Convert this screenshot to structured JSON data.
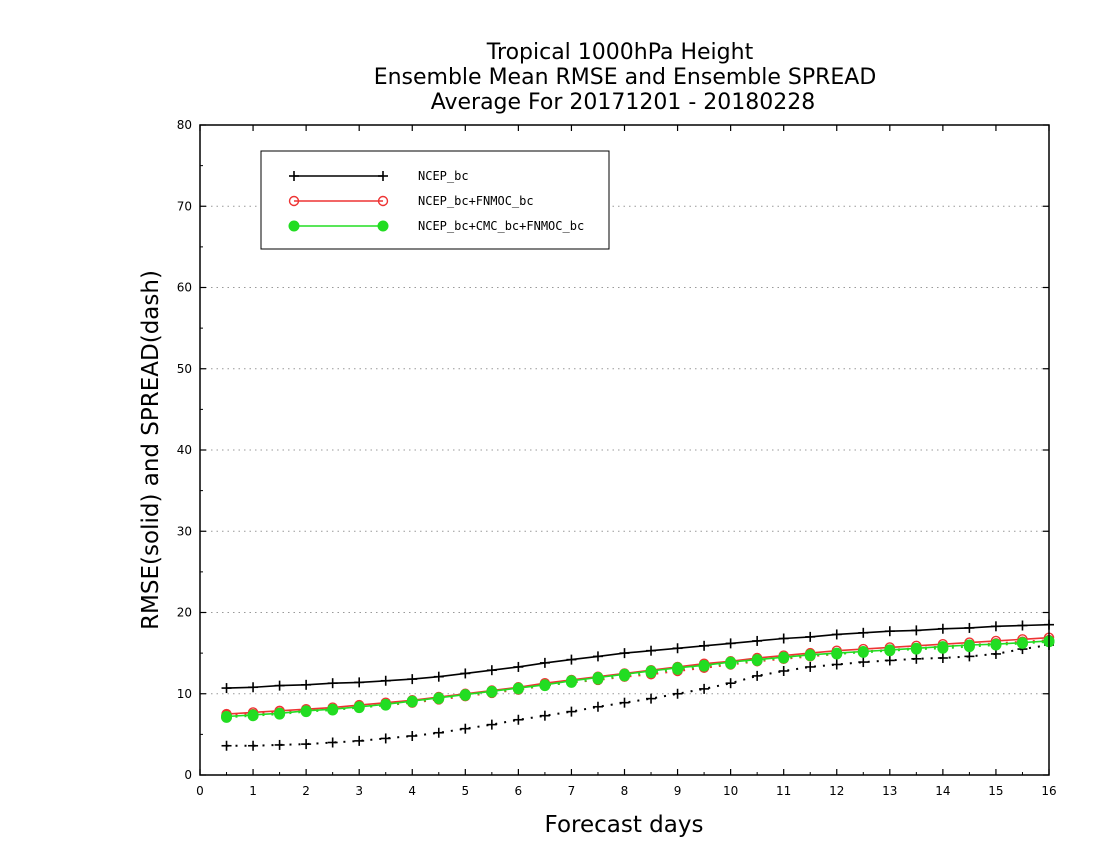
{
  "chart_data": {
    "type": "line",
    "title": [
      "Tropical 1000hPa Height",
      "Ensemble Mean RMSE and Ensemble SPREAD",
      "Average For 20171201 - 20180228"
    ],
    "xlabel": "Forecast days",
    "ylabel": "RMSE(solid) and SPREAD(dash)",
    "xlim": [
      0,
      16
    ],
    "ylim": [
      0,
      80
    ],
    "xticks": [
      0,
      1,
      2,
      3,
      4,
      5,
      6,
      7,
      8,
      9,
      10,
      11,
      12,
      13,
      14,
      15,
      16
    ],
    "yticks": [
      0,
      10,
      20,
      30,
      40,
      50,
      60,
      70,
      80
    ],
    "grid": "horizontal dotted",
    "legend_position": "top-left",
    "x": [
      0.5,
      1,
      1.5,
      2,
      2.5,
      3,
      3.5,
      4,
      4.5,
      5,
      5.5,
      6,
      6.5,
      7,
      7.5,
      8,
      8.5,
      9,
      9.5,
      10,
      10.5,
      11,
      11.5,
      12,
      12.5,
      13,
      13.5,
      14,
      14.5,
      15,
      15.5,
      16
    ],
    "series": [
      {
        "name": "NCEP_bc",
        "metric": "RMSE",
        "style": "solid",
        "marker": "plus",
        "color": "#000000",
        "values": [
          10.7,
          10.8,
          11.0,
          11.1,
          11.3,
          11.4,
          11.6,
          11.8,
          12.1,
          12.5,
          12.9,
          13.3,
          13.8,
          14.2,
          14.6,
          15.0,
          15.3,
          15.6,
          15.9,
          16.2,
          16.5,
          16.8,
          17.0,
          17.3,
          17.5,
          17.7,
          17.8,
          18.0,
          18.1,
          18.3,
          18.4,
          18.5
        ]
      },
      {
        "name": "NCEP_bc+FNMOC_bc",
        "metric": "RMSE",
        "style": "solid",
        "marker": "open-circle",
        "color": "#ee3333",
        "values": [
          7.5,
          7.7,
          7.9,
          8.1,
          8.3,
          8.6,
          8.9,
          9.2,
          9.6,
          10.0,
          10.4,
          10.8,
          11.3,
          11.7,
          12.1,
          12.5,
          12.9,
          13.3,
          13.7,
          14.0,
          14.4,
          14.7,
          15.0,
          15.3,
          15.5,
          15.7,
          15.9,
          16.1,
          16.3,
          16.5,
          16.7,
          16.9
        ]
      },
      {
        "name": "NCEP_bc+CMC_bc+FNMOC_bc",
        "metric": "RMSE",
        "style": "solid",
        "marker": "filled-circle",
        "color": "#22dd22",
        "values": [
          7.2,
          7.4,
          7.6,
          7.9,
          8.1,
          8.4,
          8.7,
          9.1,
          9.5,
          9.9,
          10.3,
          10.7,
          11.1,
          11.6,
          12.0,
          12.4,
          12.8,
          13.2,
          13.5,
          13.9,
          14.2,
          14.5,
          14.8,
          15.0,
          15.2,
          15.4,
          15.6,
          15.8,
          16.0,
          16.1,
          16.3,
          16.5
        ]
      },
      {
        "name": "NCEP_bc",
        "metric": "SPREAD",
        "style": "dashed",
        "marker": "plus",
        "color": "#000000",
        "values": [
          3.6,
          3.6,
          3.7,
          3.8,
          4.0,
          4.2,
          4.5,
          4.8,
          5.2,
          5.7,
          6.2,
          6.8,
          7.3,
          7.8,
          8.4,
          8.9,
          9.4,
          10.0,
          10.6,
          11.3,
          12.2,
          12.8,
          13.3,
          13.6,
          13.9,
          14.1,
          14.3,
          14.4,
          14.6,
          14.9,
          15.5,
          16.0
        ]
      },
      {
        "name": "NCEP_bc+FNMOC_bc",
        "metric": "SPREAD",
        "style": "dashed",
        "marker": "open-circle",
        "color": "#ee3333",
        "values": [
          7.4,
          7.5,
          7.7,
          7.9,
          8.1,
          8.3,
          8.6,
          8.9,
          9.3,
          9.7,
          10.1,
          10.5,
          11.0,
          11.4,
          11.7,
          12.1,
          12.4,
          12.8,
          13.2,
          13.6,
          14.0,
          14.3,
          14.6,
          14.9,
          15.2,
          15.4,
          15.6,
          15.8,
          16.0,
          16.2,
          16.4,
          16.6
        ]
      },
      {
        "name": "NCEP_bc+CMC_bc+FNMOC_bc",
        "metric": "SPREAD",
        "style": "dashed",
        "marker": "filled-circle",
        "color": "#22dd22",
        "values": [
          7.1,
          7.3,
          7.5,
          7.8,
          8.0,
          8.3,
          8.6,
          9.0,
          9.4,
          9.8,
          10.2,
          10.6,
          11.0,
          11.4,
          11.8,
          12.2,
          12.6,
          13.0,
          13.4,
          13.7,
          14.1,
          14.4,
          14.7,
          14.9,
          15.1,
          15.3,
          15.5,
          15.6,
          15.8,
          16.0,
          16.2,
          16.4
        ]
      }
    ],
    "legend": [
      {
        "label": "NCEP_bc",
        "marker": "plus",
        "color": "#000000"
      },
      {
        "label": "NCEP_bc+FNMOC_bc",
        "marker": "open-circle",
        "color": "#ee3333"
      },
      {
        "label": "NCEP_bc+CMC_bc+FNMOC_bc",
        "marker": "filled-circle",
        "color": "#22dd22"
      }
    ]
  }
}
